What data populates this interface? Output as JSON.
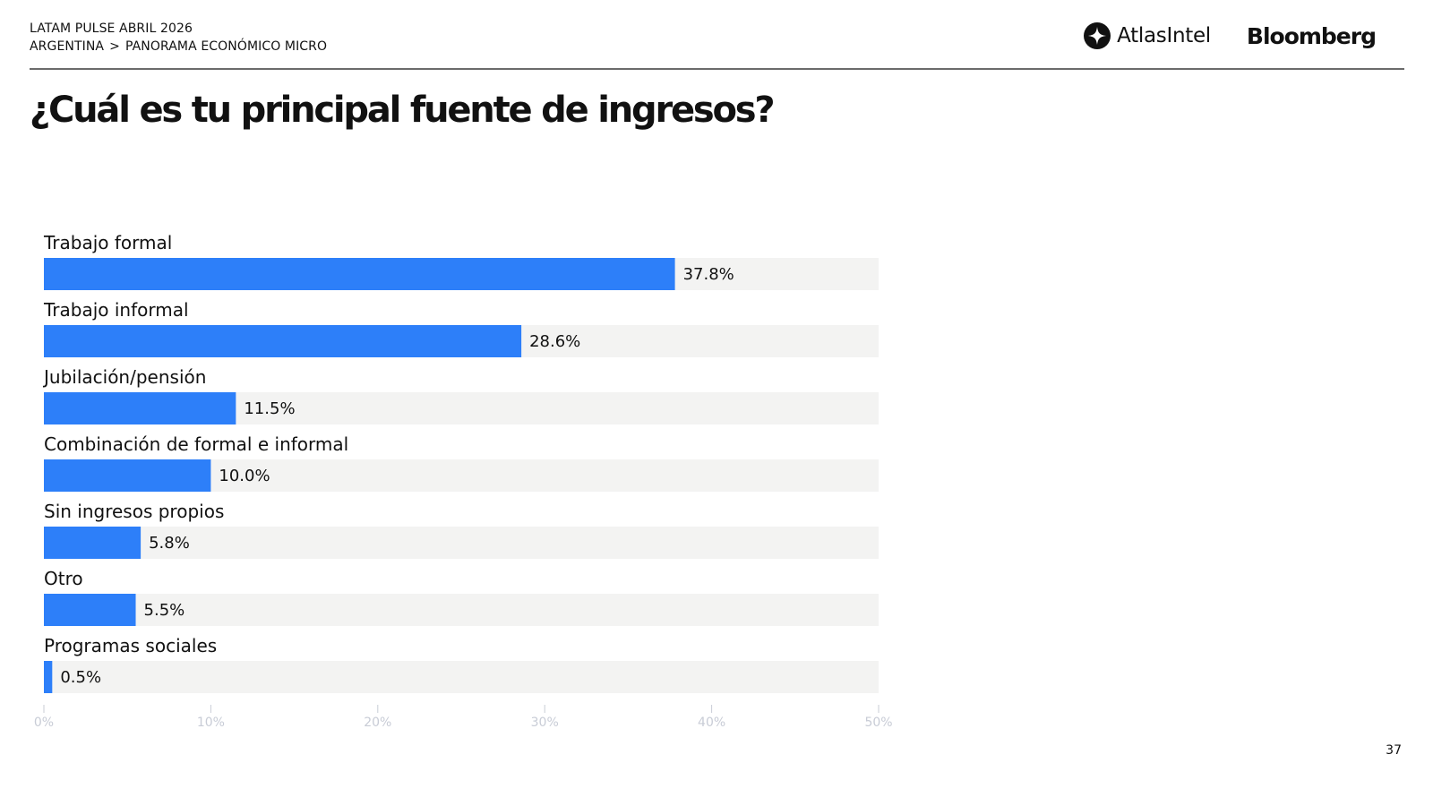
{
  "header": {
    "report_title": "LATAM PULSE ABRIL 2026",
    "breadcrumb": [
      "ARGENTINA",
      "PANORAMA ECONÓMICO MICRO"
    ],
    "breadcrumb_separator": ">"
  },
  "logos": {
    "atlas": "AtlasIntel",
    "bloomberg": "Bloomberg"
  },
  "page_number": "37",
  "colors": {
    "bar": "#2d7ff9",
    "track": "#f3f3f2",
    "text": "#111111",
    "tick": "#c8ccd6",
    "rule": "#6b6b6b"
  },
  "chart_data": {
    "type": "bar",
    "orientation": "horizontal",
    "title": "¿Cuál es tu principal fuente de ingresos?",
    "categories": [
      "Trabajo formal",
      "Trabajo informal",
      "Jubilación/pensión",
      "Combinación de formal e informal",
      "Sin ingresos propios",
      "Otro",
      "Programas sociales"
    ],
    "values": [
      37.8,
      28.6,
      11.5,
      10.0,
      5.8,
      5.5,
      0.5
    ],
    "value_labels": [
      "37.8%",
      "28.6%",
      "11.5%",
      "10.0%",
      "5.8%",
      "5.5%",
      "0.5%"
    ],
    "xlim": [
      0,
      50
    ],
    "ticks": [
      0,
      10,
      20,
      30,
      40,
      50
    ],
    "tick_labels": [
      "0%",
      "10%",
      "20%",
      "30%",
      "40%",
      "50%"
    ],
    "xlabel": "",
    "ylabel": "",
    "grid": false,
    "legend": "none"
  }
}
